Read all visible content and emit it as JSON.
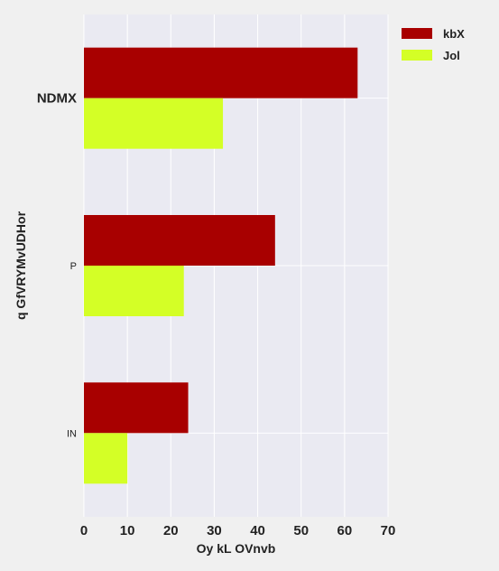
{
  "chart_data": {
    "type": "bar",
    "orientation": "horizontal",
    "categories": [
      "NDMX",
      "P",
      "IN"
    ],
    "series": [
      {
        "name": "kbX",
        "values": [
          63,
          44,
          24
        ],
        "color": "#a80000"
      },
      {
        "name": "Jol",
        "values": [
          32,
          23,
          10
        ],
        "color": "#d4ff26"
      }
    ],
    "xlabel": "Oy  kL OVnvb",
    "ylabel": "q GfVRYMvUDHor",
    "xlim": [
      0,
      70
    ],
    "xticks": [
      0,
      10,
      20,
      30,
      40,
      50,
      60,
      70
    ],
    "grid": true,
    "legend_position": "top-right",
    "plot_background": "#eaeaf2"
  }
}
